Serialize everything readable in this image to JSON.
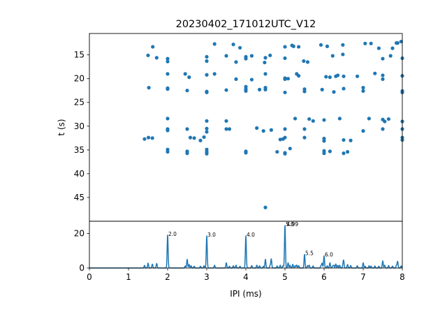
{
  "figure": {
    "title": "20230402_171012UTC_V12"
  },
  "chart_data": [
    {
      "type": "scatter",
      "panel": "raster",
      "title": "20230402_171012UTC_V12",
      "xlabel": "",
      "ylabel": "t (s)",
      "xlim": [
        0,
        8
      ],
      "ylim": [
        10.5,
        50
      ],
      "y_inverted": true,
      "yticks": [
        15,
        20,
        25,
        30,
        35,
        40,
        45
      ],
      "color": "#1f77b4",
      "points": [
        [
          1.41,
          32.7
        ],
        [
          1.51,
          32.4
        ],
        [
          1.5,
          15.1
        ],
        [
          1.52,
          21.9
        ],
        [
          1.61,
          32.5
        ],
        [
          1.62,
          13.3
        ],
        [
          1.72,
          15.6
        ],
        [
          2.0,
          15.8
        ],
        [
          2.0,
          16.4
        ],
        [
          2.0,
          19.0
        ],
        [
          2.0,
          22.0
        ],
        [
          2.0,
          22.2
        ],
        [
          2.0,
          28.4
        ],
        [
          2.0,
          30.6
        ],
        [
          2.0,
          30.9
        ],
        [
          2.0,
          34.9
        ],
        [
          2.0,
          35.4
        ],
        [
          2.45,
          19.0
        ],
        [
          2.5,
          22.5
        ],
        [
          2.5,
          30.6
        ],
        [
          2.5,
          35.3
        ],
        [
          2.5,
          35.7
        ],
        [
          2.55,
          19.7
        ],
        [
          2.58,
          32.4
        ],
        [
          2.68,
          32.5
        ],
        [
          2.84,
          33.0
        ],
        [
          2.93,
          32.3
        ],
        [
          3.0,
          15.4
        ],
        [
          3.0,
          16.3
        ],
        [
          3.0,
          19.2
        ],
        [
          3.0,
          22.7
        ],
        [
          3.0,
          22.9
        ],
        [
          3.0,
          28.9
        ],
        [
          3.0,
          30.5
        ],
        [
          3.0,
          31.2
        ],
        [
          3.0,
          34.9
        ],
        [
          3.0,
          35.4
        ],
        [
          3.0,
          35.8
        ],
        [
          3.2,
          12.7
        ],
        [
          3.2,
          19.0
        ],
        [
          3.5,
          15.2
        ],
        [
          3.5,
          22.4
        ],
        [
          3.5,
          28.9
        ],
        [
          3.5,
          30.6
        ],
        [
          3.58,
          30.6
        ],
        [
          3.68,
          12.8
        ],
        [
          3.75,
          16.5
        ],
        [
          3.75,
          20.1
        ],
        [
          3.85,
          13.5
        ],
        [
          4.0,
          15.4
        ],
        [
          4.0,
          15.8
        ],
        [
          4.0,
          21.7
        ],
        [
          4.0,
          22.2
        ],
        [
          4.0,
          22.6
        ],
        [
          4.0,
          35.3
        ],
        [
          4.0,
          35.6
        ],
        [
          4.15,
          15.2
        ],
        [
          4.15,
          20.2
        ],
        [
          4.28,
          30.4
        ],
        [
          4.35,
          22.3
        ],
        [
          4.45,
          31.0
        ],
        [
          4.48,
          16.6
        ],
        [
          4.5,
          15.6
        ],
        [
          4.5,
          19.0
        ],
        [
          4.5,
          21.9
        ],
        [
          4.5,
          22.3
        ],
        [
          4.5,
          47.1
        ],
        [
          4.62,
          15.1
        ],
        [
          4.65,
          30.8
        ],
        [
          4.8,
          35.4
        ],
        [
          4.88,
          32.8
        ],
        [
          4.95,
          32.7
        ],
        [
          5.0,
          13.3
        ],
        [
          5.0,
          15.7
        ],
        [
          5.0,
          19.9
        ],
        [
          5.0,
          20.1
        ],
        [
          5.0,
          22.9
        ],
        [
          5.0,
          30.6
        ],
        [
          5.0,
          32.4
        ],
        [
          5.0,
          35.6
        ],
        [
          5.0,
          35.8
        ],
        [
          5.08,
          20.0
        ],
        [
          5.13,
          34.7
        ],
        [
          5.18,
          13.0
        ],
        [
          5.22,
          13.2
        ],
        [
          5.26,
          28.4
        ],
        [
          5.3,
          19.0
        ],
        [
          5.35,
          19.4
        ],
        [
          5.35,
          13.3
        ],
        [
          5.48,
          16.3
        ],
        [
          5.5,
          22.2
        ],
        [
          5.5,
          22.7
        ],
        [
          5.5,
          30.6
        ],
        [
          5.5,
          32.4
        ],
        [
          5.58,
          16.5
        ],
        [
          5.62,
          28.5
        ],
        [
          5.72,
          28.9
        ],
        [
          5.92,
          12.9
        ],
        [
          5.95,
          22.3
        ],
        [
          6.0,
          28.7
        ],
        [
          6.0,
          32.6
        ],
        [
          6.0,
          33.1
        ],
        [
          6.0,
          35.2
        ],
        [
          6.0,
          35.7
        ],
        [
          6.05,
          19.6
        ],
        [
          6.08,
          13.2
        ],
        [
          6.15,
          19.7
        ],
        [
          6.15,
          35.3
        ],
        [
          6.22,
          15.2
        ],
        [
          6.25,
          22.8
        ],
        [
          6.3,
          19.5
        ],
        [
          6.35,
          19.3
        ],
        [
          6.4,
          28.4
        ],
        [
          6.48,
          12.9
        ],
        [
          6.48,
          14.9
        ],
        [
          6.5,
          19.5
        ],
        [
          6.5,
          22.1
        ],
        [
          6.5,
          32.9
        ],
        [
          6.5,
          35.7
        ],
        [
          6.6,
          35.4
        ],
        [
          6.68,
          33.0
        ],
        [
          6.85,
          19.5
        ],
        [
          7.0,
          21.9
        ],
        [
          7.0,
          22.6
        ],
        [
          7.0,
          31.0
        ],
        [
          7.05,
          12.6
        ],
        [
          7.15,
          28.4
        ],
        [
          7.2,
          12.6
        ],
        [
          7.3,
          18.9
        ],
        [
          7.4,
          13.6
        ],
        [
          7.5,
          15.8
        ],
        [
          7.5,
          19.3
        ],
        [
          7.5,
          20.1
        ],
        [
          7.5,
          28.6
        ],
        [
          7.5,
          30.6
        ],
        [
          7.55,
          29.0
        ],
        [
          7.65,
          28.5
        ],
        [
          7.7,
          15.2
        ],
        [
          7.75,
          13.6
        ],
        [
          7.85,
          12.5
        ],
        [
          7.88,
          12.5
        ],
        [
          7.97,
          12.2
        ],
        [
          8.0,
          15.7
        ],
        [
          8.0,
          19.4
        ],
        [
          8.0,
          22.6
        ],
        [
          8.0,
          22.9
        ],
        [
          8.0,
          29.0
        ],
        [
          8.0,
          30.6
        ],
        [
          8.0,
          32.4
        ],
        [
          8.0,
          32.9
        ]
      ]
    },
    {
      "type": "line",
      "panel": "histogram",
      "title": "",
      "xlabel": "IPI (ms)",
      "ylabel": "",
      "xlim": [
        0,
        8
      ],
      "ylim": [
        0,
        27
      ],
      "xticks": [
        0,
        1,
        2,
        3,
        4,
        5,
        6,
        7,
        8
      ],
      "yticks": [
        0,
        20
      ],
      "color": "#1f77b4",
      "peak_width_ms": 0.012,
      "peaks": [
        [
          1.41,
          1.5
        ],
        [
          1.5,
          2.8
        ],
        [
          1.61,
          2.2
        ],
        [
          1.72,
          2.6
        ],
        [
          2.0,
          19.0
        ],
        [
          2.45,
          1.2
        ],
        [
          2.5,
          5.0
        ],
        [
          2.55,
          2.0
        ],
        [
          2.6,
          1.3
        ],
        [
          2.68,
          1.0
        ],
        [
          2.84,
          1.0
        ],
        [
          2.93,
          1.3
        ],
        [
          3.0,
          18.5
        ],
        [
          3.2,
          1.6
        ],
        [
          3.5,
          3.0
        ],
        [
          3.58,
          1.0
        ],
        [
          3.68,
          1.3
        ],
        [
          3.75,
          1.6
        ],
        [
          3.85,
          1.0
        ],
        [
          4.0,
          18.5
        ],
        [
          4.15,
          1.4
        ],
        [
          4.28,
          1.6
        ],
        [
          4.35,
          1.3
        ],
        [
          4.45,
          1.0
        ],
        [
          4.5,
          5.0
        ],
        [
          4.62,
          1.5
        ],
        [
          4.65,
          5.2
        ],
        [
          4.8,
          1.2
        ],
        [
          4.88,
          1.6
        ],
        [
          4.95,
          1.3
        ],
        [
          5.0,
          24.5
        ],
        [
          5.08,
          3.0
        ],
        [
          5.13,
          1.6
        ],
        [
          5.2,
          2.1
        ],
        [
          5.26,
          1.3
        ],
        [
          5.3,
          1.7
        ],
        [
          5.35,
          1.4
        ],
        [
          5.5,
          7.8
        ],
        [
          5.58,
          1.4
        ],
        [
          5.62,
          1.6
        ],
        [
          5.72,
          1.2
        ],
        [
          5.92,
          1.4
        ],
        [
          5.95,
          2.8
        ],
        [
          6.0,
          7.0
        ],
        [
          6.08,
          1.3
        ],
        [
          6.15,
          3.0
        ],
        [
          6.22,
          1.2
        ],
        [
          6.25,
          1.6
        ],
        [
          6.3,
          2.3
        ],
        [
          6.35,
          1.5
        ],
        [
          6.4,
          1.6
        ],
        [
          6.48,
          1.3
        ],
        [
          6.5,
          4.3
        ],
        [
          6.6,
          2.0
        ],
        [
          6.68,
          1.4
        ],
        [
          6.85,
          1.3
        ],
        [
          7.0,
          3.0
        ],
        [
          7.05,
          1.0
        ],
        [
          7.15,
          1.3
        ],
        [
          7.2,
          1.1
        ],
        [
          7.3,
          1.2
        ],
        [
          7.4,
          1.0
        ],
        [
          7.5,
          4.1
        ],
        [
          7.55,
          1.6
        ],
        [
          7.65,
          1.4
        ],
        [
          7.75,
          1.1
        ],
        [
          7.85,
          1.5
        ],
        [
          7.88,
          3.8
        ],
        [
          7.97,
          1.2
        ]
      ],
      "annotations": [
        {
          "x": 2.0,
          "y": 19.0,
          "text": "2.0"
        },
        {
          "x": 3.0,
          "y": 18.5,
          "text": "3.0"
        },
        {
          "x": 4.0,
          "y": 18.5,
          "text": "4.0"
        },
        {
          "x": 5.0,
          "y": 24.5,
          "text": "5.0"
        },
        {
          "x": 5.0,
          "y": 24.5,
          "text": "4.99"
        },
        {
          "x": 5.5,
          "y": 7.8,
          "text": "5.5"
        },
        {
          "x": 6.0,
          "y": 7.0,
          "text": "6.0"
        }
      ]
    }
  ]
}
